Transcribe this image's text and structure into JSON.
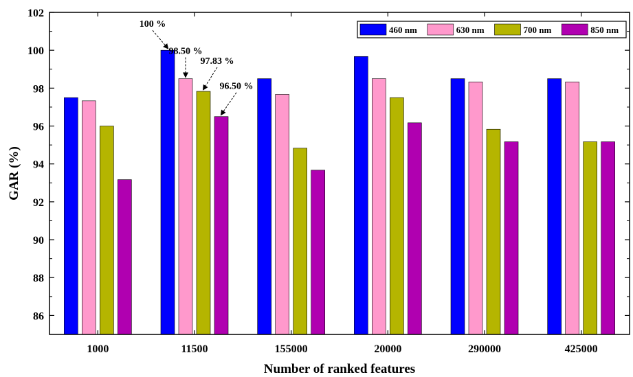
{
  "chart_data": {
    "type": "bar",
    "xlabel": "Number of ranked features",
    "ylabel": "GAR (%)",
    "ylim": [
      85,
      102
    ],
    "yticks": [
      86,
      88,
      90,
      92,
      94,
      96,
      98,
      100,
      102
    ],
    "categories": [
      "1000",
      "11500",
      "155000",
      "20000",
      "290000",
      "425000"
    ],
    "series": [
      {
        "name": "460 nm",
        "color": "#0000ff",
        "values": [
          97.5,
          100,
          98.5,
          99.67,
          98.5,
          98.5
        ]
      },
      {
        "name": "630 nm",
        "color": "#ff99cc",
        "values": [
          97.33,
          98.5,
          97.67,
          98.5,
          98.33,
          98.33
        ]
      },
      {
        "name": "700 nm",
        "color": "#b5b500",
        "values": [
          96.0,
          97.83,
          94.83,
          97.5,
          95.83,
          95.17
        ]
      },
      {
        "name": "850 nm",
        "color": "#b000b0",
        "values": [
          93.17,
          96.5,
          93.67,
          96.17,
          95.17,
          95.17
        ]
      }
    ],
    "legend_position": "top-right",
    "grid": false,
    "annotations": [
      {
        "text": "100 %",
        "category": "11500",
        "series": "460 nm"
      },
      {
        "text": "98.50 %",
        "category": "11500",
        "series": "630 nm"
      },
      {
        "text": "97.83 %",
        "category": "11500",
        "series": "700 nm"
      },
      {
        "text": "96.50 %",
        "category": "11500",
        "series": "850 nm"
      }
    ]
  }
}
